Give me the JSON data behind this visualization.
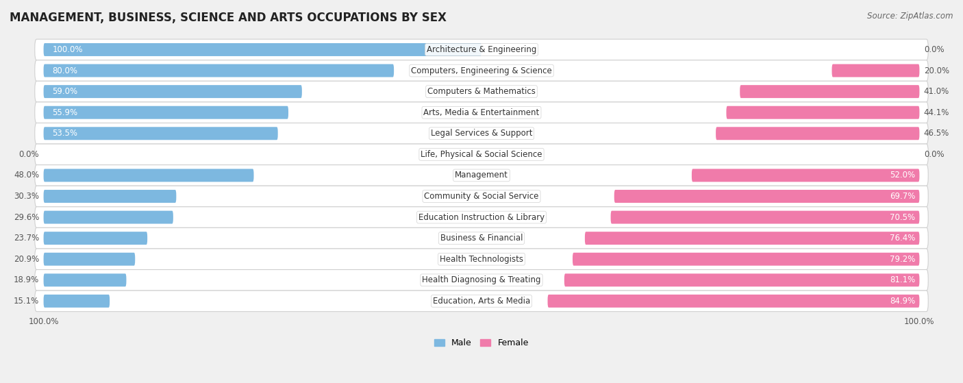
{
  "title": "MANAGEMENT, BUSINESS, SCIENCE AND ARTS OCCUPATIONS BY SEX",
  "source": "Source: ZipAtlas.com",
  "categories": [
    "Architecture & Engineering",
    "Computers, Engineering & Science",
    "Computers & Mathematics",
    "Arts, Media & Entertainment",
    "Legal Services & Support",
    "Life, Physical & Social Science",
    "Management",
    "Community & Social Service",
    "Education Instruction & Library",
    "Business & Financial",
    "Health Technologists",
    "Health Diagnosing & Treating",
    "Education, Arts & Media"
  ],
  "male_pct": [
    100.0,
    80.0,
    59.0,
    55.9,
    53.5,
    0.0,
    48.0,
    30.3,
    29.6,
    23.7,
    20.9,
    18.9,
    15.1
  ],
  "female_pct": [
    0.0,
    20.0,
    41.0,
    44.1,
    46.5,
    0.0,
    52.0,
    69.7,
    70.5,
    76.4,
    79.2,
    81.1,
    84.9
  ],
  "male_color": "#7db8e0",
  "female_color": "#f07baa",
  "life_science_male_color": "#c8dff0",
  "life_science_female_color": "#f9c8dc",
  "bg_color": "#f0f0f0",
  "row_bg_color": "#ffffff",
  "row_border_color": "#d0d0d0",
  "bar_height": 0.62,
  "title_fontsize": 12,
  "label_fontsize": 8.5,
  "pct_fontsize": 8.5,
  "legend_fontsize": 9,
  "source_fontsize": 8.5,
  "xlim": 100
}
